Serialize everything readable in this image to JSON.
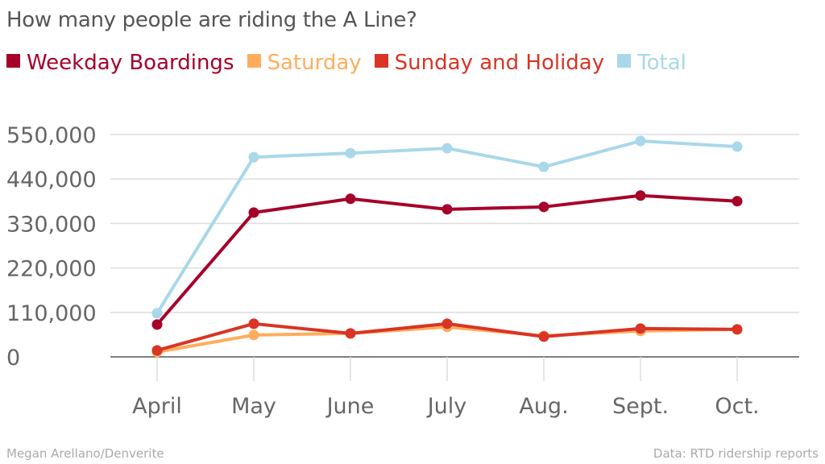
{
  "chart_data": {
    "type": "line",
    "title": "How many people are riding the A Line?",
    "categories": [
      "April",
      "May",
      "June",
      "July",
      "Aug.",
      "Sept.",
      "Oct."
    ],
    "ylim": [
      0,
      550000
    ],
    "yticks": [
      0,
      110000,
      220000,
      330000,
      440000,
      550000
    ],
    "ytick_labels": [
      "0",
      "110,000",
      "220,000",
      "330,000",
      "440,000",
      "550,000"
    ],
    "grid": true,
    "legend_position": "top-left",
    "series": [
      {
        "name": "Total",
        "color": "#a8d8ea",
        "values": [
          108000,
          494000,
          504000,
          516000,
          470000,
          534000,
          520000
        ]
      },
      {
        "name": "Weekday Boardings",
        "color": "#a6002a",
        "values": [
          80000,
          357000,
          391000,
          365000,
          371000,
          399000,
          385000
        ]
      },
      {
        "name": "Saturday",
        "color": "#ffad5c",
        "values": [
          12000,
          54000,
          58000,
          74000,
          52000,
          64000,
          68000
        ]
      },
      {
        "name": "Sunday and Holiday",
        "color": "#d93425",
        "values": [
          16000,
          82000,
          58000,
          82000,
          50000,
          70000,
          68000
        ]
      }
    ],
    "legend_order": [
      1,
      2,
      3,
      0
    ]
  },
  "footer": {
    "credit": "Megan Arellano/Denverite",
    "source": "Data: RTD ridership reports"
  }
}
